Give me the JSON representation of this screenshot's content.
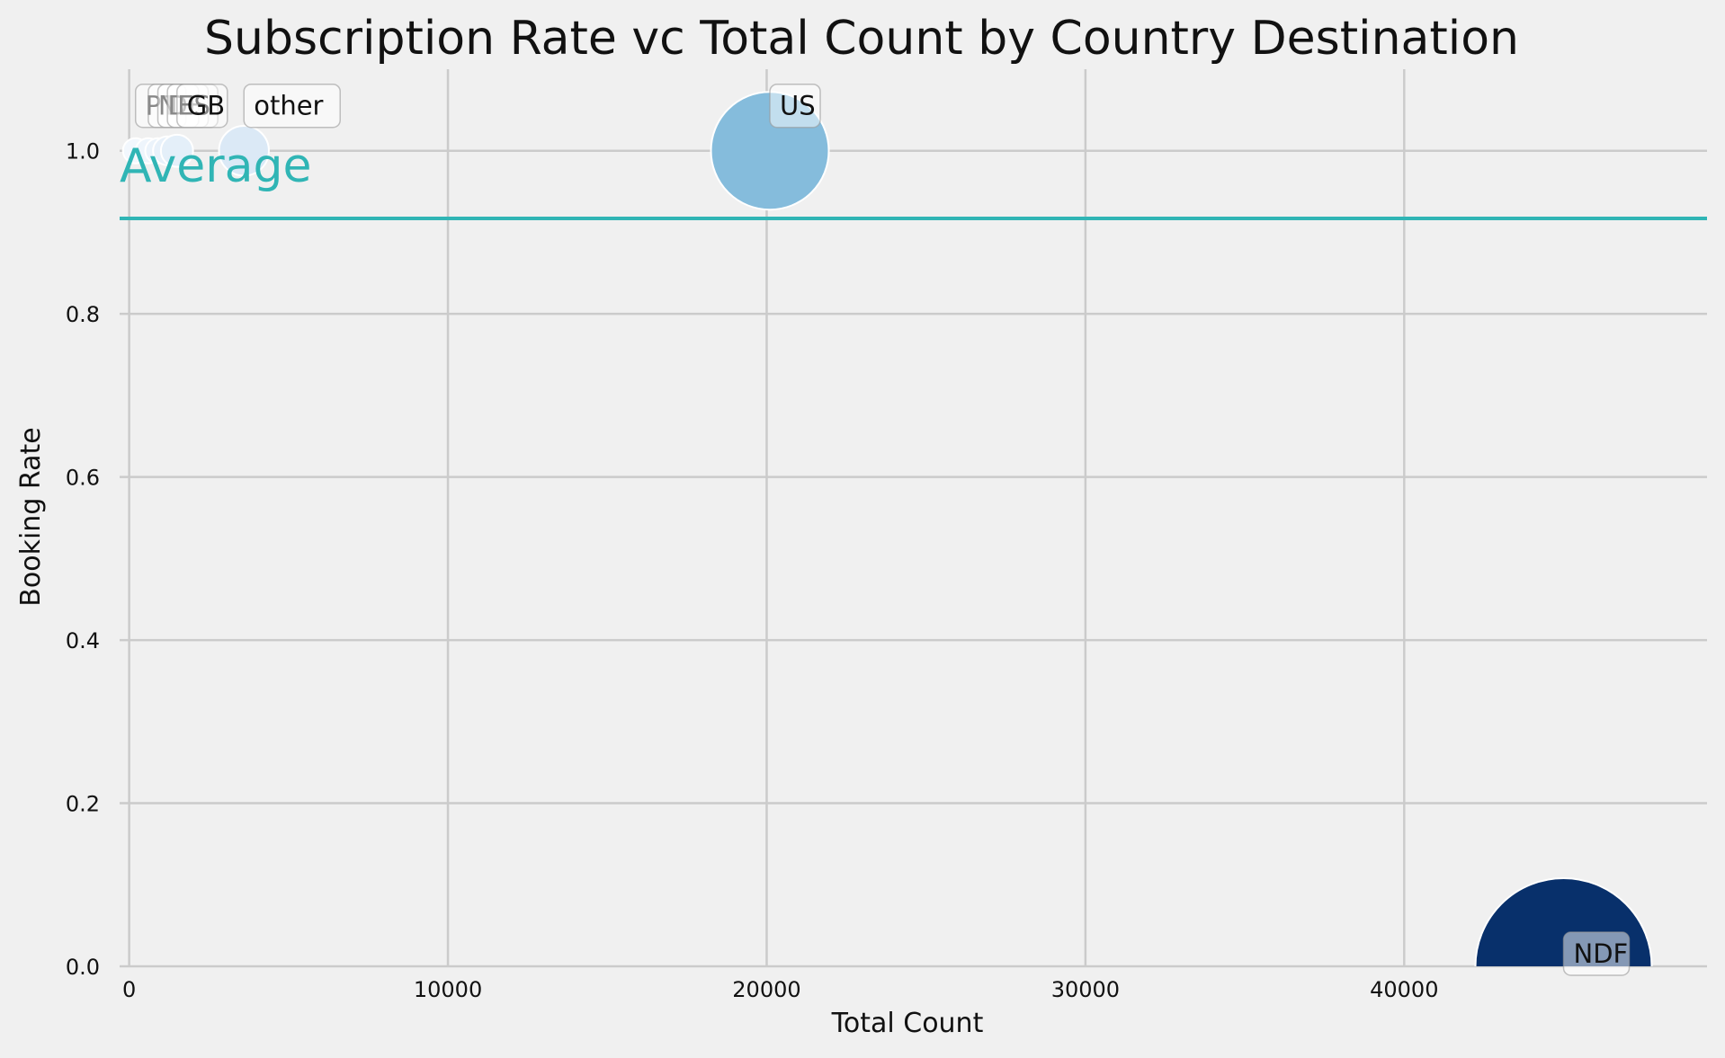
{
  "chart_data": {
    "type": "scatter",
    "title": "Subscription Rate vc Total Count by Country Destination",
    "xlabel": "Total Count",
    "ylabel": "Booking Rate",
    "xlim": [
      -300,
      49500
    ],
    "ylim": [
      0,
      1.1
    ],
    "x_ticks": [
      0,
      10000,
      20000,
      30000,
      40000
    ],
    "y_ticks": [
      0.0,
      0.2,
      0.4,
      0.6,
      0.8,
      1.0
    ],
    "x_tick_labels": [
      "0",
      "10000",
      "20000",
      "30000",
      "40000"
    ],
    "y_tick_labels": [
      "0.0",
      "0.2",
      "0.4",
      "0.6",
      "0.8",
      "1.0"
    ],
    "grid": true,
    "average": {
      "label": "Average",
      "value": 0.917,
      "color": "#30b5b5"
    },
    "points": [
      {
        "label": "PT",
        "x": 200,
        "y": 1.0,
        "color": "#f2f7fd"
      },
      {
        "label": "NL",
        "x": 600,
        "y": 1.0,
        "color": "#eef5fc"
      },
      {
        "label": "DE",
        "x": 900,
        "y": 1.0,
        "color": "#ebf3fb"
      },
      {
        "label": "ES",
        "x": 1200,
        "y": 1.0,
        "color": "#e8f1fa"
      },
      {
        "label": "GB",
        "x": 1500,
        "y": 1.0,
        "color": "#e4eff9"
      },
      {
        "label": "other",
        "x": 3600,
        "y": 1.0,
        "color": "#dbe9f6"
      },
      {
        "label": "US",
        "x": 20100,
        "y": 1.0,
        "color": "#85bcdc"
      },
      {
        "label": "NDF",
        "x": 45000,
        "y": 0.0,
        "color": "#08306b"
      }
    ]
  }
}
